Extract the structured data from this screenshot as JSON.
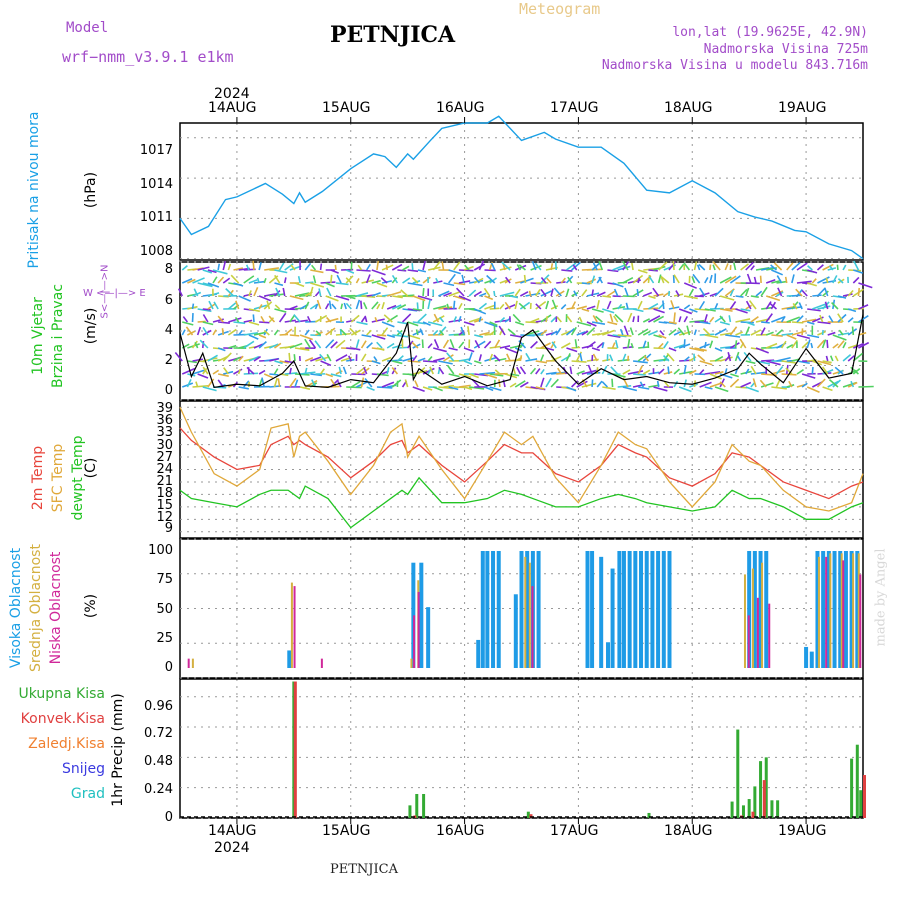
{
  "header": {
    "model_label": "Model",
    "model_name": "wrf−nmm_v3.9.1  e1km",
    "station": "PETNJICA",
    "product": "Meteogram",
    "coords": "lon,lat (19.9625E, 42.9N)",
    "altitude": "Nadmorska Visina 725m",
    "model_altitude": "Nadmorska Visina u modelu 843.716m",
    "footer_station": "PETNJICA",
    "credit": "made by Angel"
  },
  "colors": {
    "pressure": "#1aa0e6",
    "wind_speed": "#000000",
    "temp_2m": "#e8453c",
    "temp_sfc": "#e0a83a",
    "temp_dew": "#22c422",
    "cloud_high": "#1e9be6",
    "cloud_mid": "#d4b040",
    "cloud_low": "#d0289a",
    "precip_total": "#33aa33",
    "precip_conv": "#e04040",
    "precip_frozen": "#f08030",
    "precip_snow": "#3a3ae0",
    "precip_graupel": "#20c0c0",
    "purple_text": "#a24cc9"
  },
  "axes": {
    "top_year": "2024",
    "bottom_year": "2024",
    "day_labels": [
      "14AUG",
      "15AUG",
      "16AUG",
      "17AUG",
      "18AUG",
      "19AUG"
    ]
  },
  "panels": {
    "pressure": {
      "label": "Pritisak na nivou mora",
      "unit": "(hPa)",
      "ticks": [
        "1017",
        "1014",
        "1011",
        "1008"
      ]
    },
    "wind": {
      "label1": "10m Vjetar",
      "label2": "Brzina i Pravac",
      "unit": "(m/s)",
      "compass": "W <—|—> E",
      "compass_ns": "S<—|—>N",
      "ticks": [
        "8",
        "6",
        "4",
        "2",
        "0"
      ]
    },
    "temp": {
      "label1": "2m Temp",
      "label2": "SFC Temp",
      "label3": "dewpt Temp",
      "unit": "(C)",
      "ticks": [
        "39",
        "36",
        "33",
        "30",
        "27",
        "24",
        "21",
        "18",
        "15",
        "12",
        "9"
      ]
    },
    "cloud": {
      "label1": "Visoka Oblacnost",
      "label2": "Srednja Oblacnost",
      "label3": "Niska Oblacnost",
      "unit": "(%)",
      "ticks": [
        "100",
        "75",
        "50",
        "25",
        "0"
      ]
    },
    "precip": {
      "legend": [
        "Ukupna Kisa",
        "Konvek.Kisa",
        "Zaledj.Kisa",
        "Snijeg",
        "Grad"
      ],
      "unit": "1hr Precip (mm)",
      "ticks": [
        "0.96",
        "0.72",
        "0.48",
        "0.24",
        "0"
      ]
    }
  },
  "chart_data": [
    {
      "type": "line",
      "name": "pressure",
      "x_unit": "day-of-August-2024",
      "ylabel": "(hPa)",
      "ylim": [
        1007.9,
        1018.1
      ],
      "x": [
        13.5,
        13.6,
        13.75,
        13.9,
        14.0,
        14.25,
        14.4,
        14.5,
        14.55,
        14.6,
        14.75,
        15.0,
        15.2,
        15.3,
        15.4,
        15.5,
        15.55,
        15.7,
        15.8,
        16.0,
        16.2,
        16.3,
        16.5,
        16.7,
        16.8,
        17.0,
        17.2,
        17.4,
        17.6,
        17.8,
        18.0,
        18.2,
        18.4,
        18.55,
        18.7,
        18.9,
        19.0,
        19.2,
        19.4,
        19.5
      ],
      "values": [
        1011.0,
        1009.8,
        1010.4,
        1012.4,
        1012.6,
        1013.6,
        1012.8,
        1012.1,
        1012.9,
        1012.2,
        1013.0,
        1014.7,
        1015.8,
        1015.6,
        1014.8,
        1015.8,
        1015.4,
        1016.8,
        1017.7,
        1018.1,
        1018.1,
        1018.6,
        1016.8,
        1017.4,
        1016.9,
        1016.3,
        1016.3,
        1015.1,
        1013.1,
        1012.9,
        1013.8,
        1012.9,
        1011.5,
        1011.1,
        1010.8,
        1010.1,
        1010.0,
        1009.1,
        1008.6,
        1008.0
      ]
    },
    {
      "type": "line",
      "name": "wind_speed",
      "ylabel": "(m/s)",
      "ylim": [
        0,
        8
      ],
      "x": [
        13.5,
        13.6,
        13.7,
        13.8,
        14.0,
        14.2,
        14.4,
        14.5,
        14.6,
        14.8,
        15.0,
        15.2,
        15.4,
        15.5,
        15.55,
        15.6,
        15.8,
        16.0,
        16.2,
        16.4,
        16.5,
        16.6,
        16.8,
        17.0,
        17.2,
        17.4,
        17.6,
        17.8,
        18.0,
        18.2,
        18.4,
        18.5,
        18.6,
        18.8,
        19.0,
        19.2,
        19.4,
        19.5
      ],
      "values": [
        3.8,
        1.0,
        2.5,
        0.3,
        0.5,
        0.4,
        1.2,
        2.0,
        0.4,
        0.3,
        0.8,
        0.6,
        2.5,
        4.5,
        0.8,
        1.5,
        0.5,
        1.0,
        0.4,
        0.8,
        3.5,
        4.0,
        2.0,
        0.5,
        1.5,
        0.8,
        1.0,
        0.6,
        0.5,
        0.9,
        1.5,
        2.5,
        1.8,
        0.6,
        2.8,
        0.9,
        1.2,
        5.0
      ]
    },
    {
      "type": "line",
      "name": "temperature",
      "ylabel": "(C)",
      "ylim": [
        7.5,
        40.5
      ],
      "x": [
        13.5,
        13.6,
        13.8,
        14.0,
        14.2,
        14.3,
        14.45,
        14.5,
        14.55,
        14.6,
        14.8,
        15.0,
        15.2,
        15.35,
        15.45,
        15.5,
        15.6,
        15.8,
        16.0,
        16.2,
        16.35,
        16.5,
        16.6,
        16.8,
        17.0,
        17.2,
        17.35,
        17.5,
        17.6,
        17.8,
        18.0,
        18.2,
        18.35,
        18.5,
        18.6,
        18.8,
        19.0,
        19.2,
        19.4,
        19.5
      ],
      "series": [
        {
          "name": "2m Temp",
          "values": [
            34,
            31,
            27,
            24,
            25,
            30,
            32,
            30,
            31,
            30,
            27,
            22,
            26,
            30,
            31,
            28,
            30,
            25,
            21,
            26,
            30,
            28,
            28,
            23,
            21,
            25,
            30,
            28,
            27,
            22,
            20,
            23,
            28,
            27,
            25,
            21,
            19,
            17,
            20,
            21
          ]
        },
        {
          "name": "SFC Temp",
          "values": [
            39,
            33,
            23,
            20,
            24,
            34,
            35,
            27,
            32,
            33,
            26,
            18,
            25,
            33,
            35,
            27,
            32,
            24,
            17,
            26,
            33,
            30,
            32,
            22,
            16,
            25,
            33,
            30,
            29,
            21,
            15,
            21,
            30,
            26,
            25,
            19,
            15,
            14,
            16,
            23
          ]
        },
        {
          "name": "dewpt Temp",
          "values": [
            19,
            17,
            16,
            15,
            18,
            19,
            19,
            18,
            17,
            20,
            17,
            10,
            14,
            17,
            19,
            18,
            22,
            16,
            16,
            17,
            19,
            18,
            17,
            15,
            15,
            17,
            18,
            17,
            16,
            15,
            14,
            15,
            19,
            17,
            17,
            15,
            12,
            12,
            15,
            16
          ]
        }
      ]
    },
    {
      "type": "bar",
      "name": "cloud_cover",
      "ylabel": "(%)",
      "ylim": [
        0,
        100
      ],
      "series": [
        {
          "name": "Visoka Oblacnost",
          "x": [
            14.46,
            15.55,
            15.62,
            15.68,
            16.12,
            16.16,
            16.2,
            16.25,
            16.3,
            16.45,
            16.5,
            16.55,
            16.6,
            16.65,
            17.08,
            17.12,
            17.2,
            17.26,
            17.3,
            17.36,
            17.4,
            17.45,
            17.5,
            17.55,
            17.6,
            17.65,
            17.7,
            17.75,
            17.8,
            18.5,
            18.55,
            18.6,
            18.65,
            19.0,
            19.05,
            19.1,
            19.15,
            19.2,
            19.25,
            19.3,
            19.35,
            19.4,
            19.45
          ],
          "values": [
            15,
            90,
            90,
            52,
            24,
            100,
            100,
            100,
            100,
            63,
            100,
            100,
            100,
            100,
            100,
            100,
            95,
            22,
            85,
            100,
            100,
            100,
            100,
            100,
            100,
            100,
            100,
            100,
            100,
            100,
            100,
            100,
            100,
            18,
            14,
            100,
            100,
            100,
            100,
            100,
            100,
            100,
            100
          ]
        },
        {
          "name": "Srednja Oblacnost",
          "x": [
            13.6,
            14.47,
            15.52,
            15.58,
            16.52,
            16.56,
            18.45,
            18.52,
            18.6,
            19.1,
            19.2,
            19.3,
            19.4,
            19.45
          ],
          "values": [
            8,
            73,
            8,
            75,
            95,
            90,
            80,
            85,
            90,
            95,
            98,
            98,
            98,
            98
          ]
        },
        {
          "name": "Niska Oblacnost",
          "x": [
            13.55,
            14.48,
            14.72,
            15.53,
            15.57,
            16.57,
            18.47,
            18.55,
            18.65,
            19.15,
            19.3,
            19.45
          ],
          "values": [
            8,
            70,
            8,
            45,
            65,
            70,
            45,
            60,
            55,
            95,
            92,
            80
          ]
        }
      ]
    },
    {
      "type": "bar",
      "name": "precipitation",
      "ylabel": "1hr Precip (mm)",
      "ylim": [
        0,
        1.1
      ],
      "series": [
        {
          "name": "Ukupna Kisa",
          "x": [
            14.5,
            15.52,
            15.58,
            15.64,
            16.56,
            17.62,
            18.35,
            18.4,
            18.45,
            18.5,
            18.55,
            18.6,
            18.65,
            18.7,
            18.75,
            19.4,
            19.45,
            19.48
          ],
          "values": [
            1.08,
            0.1,
            0.19,
            0.19,
            0.05,
            0.04,
            0.13,
            0.7,
            0.1,
            0.15,
            0.25,
            0.45,
            0.48,
            0.14,
            0.14,
            0.47,
            0.58,
            0.22
          ]
        },
        {
          "name": "Konvek.Kisa",
          "x": [
            14.5,
            15.55,
            16.57,
            18.42,
            18.52,
            18.62,
            19.5
          ],
          "values": [
            1.08,
            0.02,
            0.03,
            0.02,
            0.05,
            0.3,
            0.34
          ]
        }
      ]
    }
  ]
}
